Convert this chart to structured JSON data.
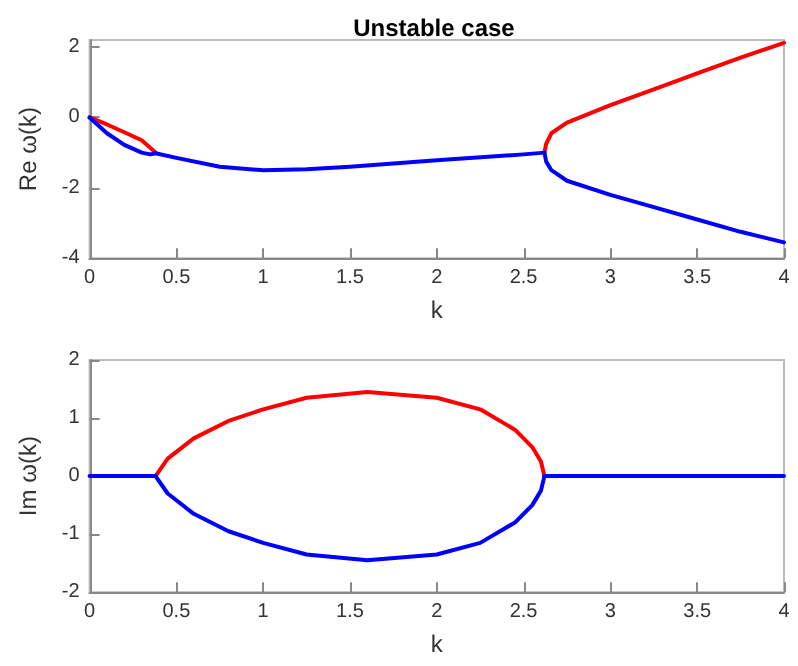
{
  "chart_data": [
    {
      "type": "line",
      "title": "Unstable case",
      "xlabel": "k",
      "ylabel": "Re ω(k)",
      "xlim": [
        0,
        4
      ],
      "xticks": [
        0,
        0.5,
        1,
        1.5,
        2,
        2.5,
        3,
        3.5,
        4
      ],
      "ylim": [
        -4,
        2.2
      ],
      "yticks": [
        -4,
        -2,
        0,
        2
      ],
      "grid": false,
      "marker": "none",
      "line_style": "solid",
      "series": [
        {
          "color": "#ff0000",
          "x": [
            0,
            0.1,
            0.2,
            0.3,
            0.38,
            null,
            2.62,
            2.63,
            2.66,
            2.75,
            3,
            3.25,
            3.5,
            3.75,
            4
          ],
          "values": [
            0,
            -0.2,
            -0.42,
            -0.65,
            -1.0,
            null,
            -1.0,
            -0.75,
            -0.45,
            -0.15,
            0.35,
            0.8,
            1.25,
            1.7,
            2.12
          ]
        },
        {
          "color": "#0000ff",
          "x": [
            0,
            0.1,
            0.2,
            0.3,
            0.35,
            0.38,
            0.5,
            0.75,
            1,
            1.25,
            1.5,
            2,
            2.5,
            2.62,
            2.63,
            2.66,
            2.75,
            3,
            3.25,
            3.5,
            3.75,
            4
          ],
          "values": [
            0,
            -0.45,
            -0.78,
            -1.0,
            -1.05,
            -1.02,
            -1.15,
            -1.4,
            -1.5,
            -1.47,
            -1.4,
            -1.22,
            -1.05,
            -1.0,
            -1.25,
            -1.5,
            -1.8,
            -2.2,
            -2.55,
            -2.9,
            -3.25,
            -3.55
          ]
        }
      ]
    },
    {
      "type": "line",
      "xlabel": "k",
      "ylabel": "Im ω(k)",
      "xlim": [
        0,
        4
      ],
      "xticks": [
        0,
        0.5,
        1,
        1.5,
        2,
        2.5,
        3,
        3.5,
        4
      ],
      "ylim": [
        -2,
        2
      ],
      "yticks": [
        -2,
        -1,
        0,
        1,
        2
      ],
      "grid": false,
      "marker": "none",
      "line_style": "solid",
      "series": [
        {
          "color": "#ff0000",
          "x": [
            0.38,
            0.45,
            0.6,
            0.8,
            1,
            1.25,
            1.6,
            2,
            2.25,
            2.45,
            2.55,
            2.6,
            2.62
          ],
          "values": [
            0,
            0.3,
            0.65,
            0.95,
            1.15,
            1.35,
            1.45,
            1.35,
            1.15,
            0.8,
            0.5,
            0.25,
            0
          ]
        },
        {
          "color": "#0000ff",
          "x": [
            0,
            0.38,
            0.45,
            0.6,
            0.8,
            1,
            1.25,
            1.6,
            2,
            2.25,
            2.45,
            2.55,
            2.6,
            2.62,
            4
          ],
          "values": [
            0,
            0,
            -0.3,
            -0.65,
            -0.95,
            -1.15,
            -1.35,
            -1.45,
            -1.35,
            -1.15,
            -0.8,
            -0.5,
            -0.25,
            0,
            0
          ]
        }
      ]
    }
  ]
}
